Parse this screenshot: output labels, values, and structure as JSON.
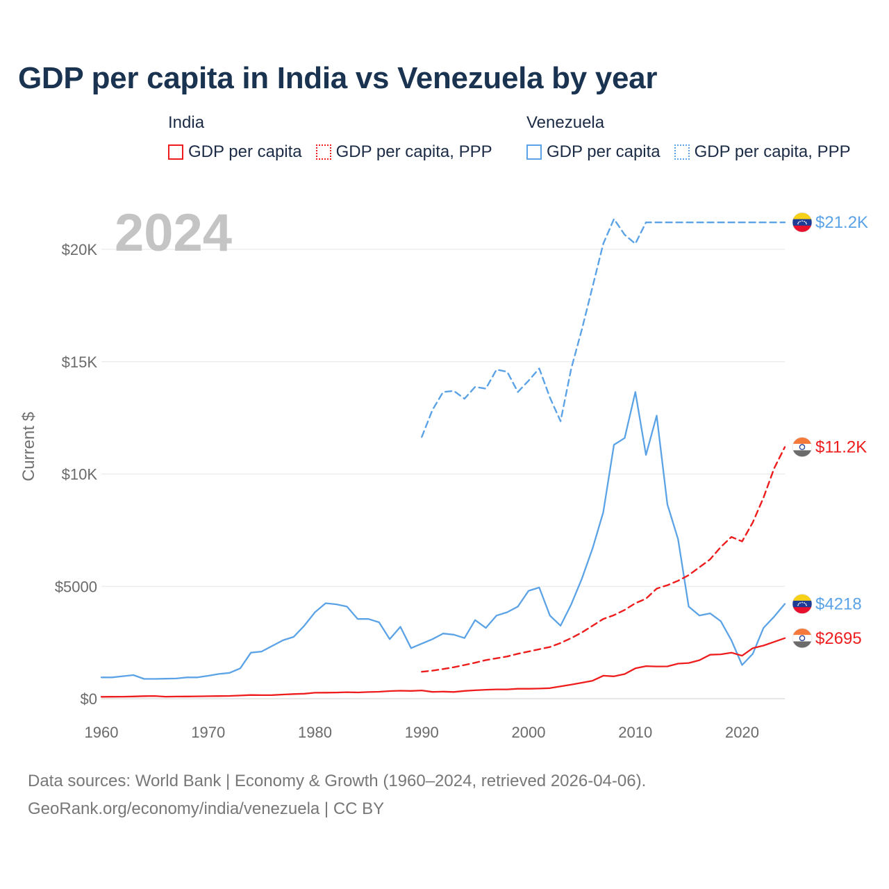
{
  "title": "GDP per capita in India vs Venezuela by year",
  "year": "2024",
  "legend": {
    "groups": [
      {
        "country": "India",
        "color": "#ee1c1c",
        "items": [
          {
            "label": "GDP per capita",
            "style": "solid"
          },
          {
            "label": "GDP per capita, PPP",
            "style": "dotted"
          }
        ]
      },
      {
        "country": "Venezuela",
        "color": "#5ba3e6",
        "items": [
          {
            "label": "GDP per capita",
            "style": "solid"
          },
          {
            "label": "GDP per capita, PPP",
            "style": "dotted"
          }
        ]
      }
    ]
  },
  "source": {
    "line1": "Data sources: World Bank | Economy & Growth (1960–2024, retrieved 2026-04-06).",
    "line2": "GeoRank.org/economy/india/venezuela | CC BY"
  },
  "chart_data": {
    "type": "line",
    "title": "GDP per capita in India vs Venezuela by year",
    "xlabel": "",
    "ylabel": "Current $",
    "xlim": [
      1960,
      2024
    ],
    "ylim": [
      0,
      22000
    ],
    "x_ticks": [
      1960,
      1970,
      1980,
      1990,
      2000,
      2010,
      2020
    ],
    "x_tick_labels": [
      "1960",
      "1970",
      "1980",
      "1990",
      "2000",
      "2010",
      "2020"
    ],
    "y_ticks": [
      0,
      5000,
      10000,
      15000,
      20000
    ],
    "y_tick_labels": [
      "$0",
      "$5000",
      "$10K",
      "$15K",
      "$20K"
    ],
    "grid": true,
    "series": [
      {
        "name": "Venezuela GDP per capita, PPP",
        "country": "Venezuela",
        "flag": "venezuela",
        "color": "#5ba3e6",
        "dash": "dashed",
        "end_label": "$21.2K",
        "x": [
          1990,
          1991,
          1992,
          1993,
          1994,
          1995,
          1996,
          1997,
          1998,
          1999,
          2000,
          2001,
          2002,
          2003,
          2004,
          2005,
          2006,
          2007,
          2008,
          2009,
          2010,
          2011,
          2024
        ],
        "values": [
          11650,
          12850,
          13650,
          13700,
          13350,
          13880,
          13800,
          14650,
          14550,
          13650,
          14150,
          14700,
          13400,
          12350,
          14700,
          16450,
          18350,
          20250,
          21350,
          20650,
          20250,
          21200,
          21200
        ]
      },
      {
        "name": "Venezuela GDP per capita",
        "country": "Venezuela",
        "flag": "venezuela",
        "color": "#5ba3e6",
        "dash": "solid",
        "end_label": "$4218",
        "x": [
          1960,
          1961,
          1962,
          1963,
          1964,
          1965,
          1966,
          1967,
          1968,
          1969,
          1970,
          1971,
          1972,
          1973,
          1974,
          1975,
          1976,
          1977,
          1978,
          1979,
          1980,
          1981,
          1982,
          1983,
          1984,
          1985,
          1986,
          1987,
          1988,
          1989,
          1990,
          1991,
          1992,
          1993,
          1994,
          1995,
          1996,
          1997,
          1998,
          1999,
          2000,
          2001,
          2002,
          2003,
          2004,
          2005,
          2006,
          2007,
          2008,
          2009,
          2010,
          2011,
          2012,
          2013,
          2014,
          2015,
          2016,
          2017,
          2018,
          2019,
          2020,
          2021,
          2022,
          2023,
          2024
        ],
        "values": [
          950,
          950,
          1000,
          1050,
          880,
          880,
          890,
          900,
          950,
          950,
          1020,
          1100,
          1150,
          1350,
          2050,
          2100,
          2350,
          2600,
          2750,
          3250,
          3850,
          4250,
          4200,
          4100,
          3550,
          3550,
          3400,
          2650,
          3200,
          2250,
          2450,
          2650,
          2900,
          2850,
          2700,
          3500,
          3150,
          3700,
          3850,
          4100,
          4800,
          4950,
          3700,
          3250,
          4200,
          5350,
          6700,
          8300,
          11300,
          11600,
          13650,
          10850,
          12600,
          8650,
          7100,
          4100,
          3700,
          3800,
          3450,
          2600,
          1500,
          2000,
          3150,
          3650,
          4218
        ]
      },
      {
        "name": "India GDP per capita, PPP",
        "country": "India",
        "flag": "india",
        "color": "#ee1c1c",
        "dash": "dashed",
        "end_label": "$11.2K",
        "x": [
          1990,
          1991,
          1992,
          1993,
          1994,
          1995,
          1996,
          1997,
          1998,
          1999,
          2000,
          2001,
          2002,
          2003,
          2004,
          2005,
          2006,
          2007,
          2008,
          2009,
          2010,
          2011,
          2012,
          2013,
          2014,
          2015,
          2016,
          2017,
          2018,
          2019,
          2020,
          2021,
          2022,
          2023,
          2024
        ],
        "values": [
          1200,
          1250,
          1320,
          1400,
          1500,
          1600,
          1720,
          1800,
          1880,
          2000,
          2100,
          2200,
          2300,
          2480,
          2700,
          2950,
          3250,
          3550,
          3720,
          3950,
          4250,
          4450,
          4900,
          5050,
          5250,
          5500,
          5850,
          6200,
          6750,
          7200,
          7000,
          7850,
          8950,
          10250,
          11200
        ]
      },
      {
        "name": "India GDP per capita",
        "country": "India",
        "flag": "india",
        "color": "#ee1c1c",
        "dash": "solid",
        "end_label": "$2695",
        "x": [
          1960,
          1961,
          1962,
          1963,
          1964,
          1965,
          1966,
          1967,
          1968,
          1969,
          1970,
          1971,
          1972,
          1973,
          1974,
          1975,
          1976,
          1977,
          1978,
          1979,
          1980,
          1981,
          1982,
          1983,
          1984,
          1985,
          1986,
          1987,
          1988,
          1989,
          1990,
          1991,
          1992,
          1993,
          1994,
          1995,
          1996,
          1997,
          1998,
          1999,
          2000,
          2001,
          2002,
          2003,
          2004,
          2005,
          2006,
          2007,
          2008,
          2009,
          2010,
          2011,
          2012,
          2013,
          2014,
          2015,
          2016,
          2017,
          2018,
          2019,
          2020,
          2021,
          2022,
          2023,
          2024
        ],
        "values": [
          83,
          87,
          91,
          100,
          115,
          120,
          90,
          96,
          99,
          105,
          112,
          118,
          123,
          143,
          163,
          158,
          161,
          186,
          206,
          224,
          267,
          270,
          275,
          292,
          277,
          296,
          310,
          340,
          354,
          346,
          368,
          303,
          316,
          301,
          346,
          374,
          400,
          415,
          414,
          442,
          443,
          451,
          470,
          546,
          624,
          710,
          802,
          1023,
          994,
          1097,
          1351,
          1450,
          1434,
          1438,
          1560,
          1590,
          1714,
          1958,
          1974,
          2050,
          1913,
          2250,
          2366,
          2530,
          2695
        ]
      }
    ]
  }
}
